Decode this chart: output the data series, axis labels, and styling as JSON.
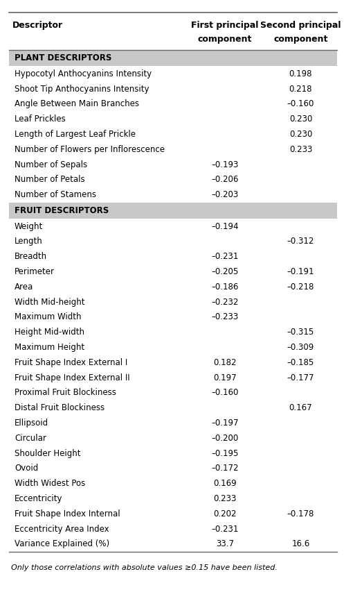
{
  "header_col0": "Descriptor",
  "header_col1_line1": "First principal",
  "header_col1_line2": "component",
  "header_col2_line1": "Second principal",
  "header_col2_line2": "component",
  "section1_label": "PLANT DESCRIPTORS",
  "rows": [
    {
      "label": "Hypocotyl Anthocyanins Intensity",
      "pc1": "",
      "pc2": "0.198",
      "section": false
    },
    {
      "label": "Shoot Tip Anthocyanins Intensity",
      "pc1": "",
      "pc2": "0.218",
      "section": false
    },
    {
      "label": "Angle Between Main Branches",
      "pc1": "",
      "pc2": "–0.160",
      "section": false
    },
    {
      "label": "Leaf Prickles",
      "pc1": "",
      "pc2": "0.230",
      "section": false
    },
    {
      "label": "Length of Largest Leaf Prickle",
      "pc1": "",
      "pc2": "0.230",
      "section": false
    },
    {
      "label": "Number of Flowers per Inflorescence",
      "pc1": "",
      "pc2": "0.233",
      "section": false
    },
    {
      "label": "Number of Sepals",
      "pc1": "–0.193",
      "pc2": "",
      "section": false
    },
    {
      "label": "Number of Petals",
      "pc1": "–0.206",
      "pc2": "",
      "section": false
    },
    {
      "label": "Number of Stamens",
      "pc1": "–0.203",
      "pc2": "",
      "section": false
    },
    {
      "label": "FRUIT DESCRIPTORS",
      "pc1": "",
      "pc2": "",
      "section": true
    },
    {
      "label": "Weight",
      "pc1": "–0.194",
      "pc2": "",
      "section": false
    },
    {
      "label": "Length",
      "pc1": "",
      "pc2": "–0.312",
      "section": false
    },
    {
      "label": "Breadth",
      "pc1": "–0.231",
      "pc2": "",
      "section": false
    },
    {
      "label": "Perimeter",
      "pc1": "–0.205",
      "pc2": "–0.191",
      "section": false
    },
    {
      "label": "Area",
      "pc1": "–0.186",
      "pc2": "–0.218",
      "section": false
    },
    {
      "label": "Width Mid-height",
      "pc1": "–0.232",
      "pc2": "",
      "section": false
    },
    {
      "label": "Maximum Width",
      "pc1": "–0.233",
      "pc2": "",
      "section": false
    },
    {
      "label": "Height Mid-width",
      "pc1": "",
      "pc2": "–0.315",
      "section": false
    },
    {
      "label": "Maximum Height",
      "pc1": "",
      "pc2": "–0.309",
      "section": false
    },
    {
      "label": "Fruit Shape Index External I",
      "pc1": "0.182",
      "pc2": "–0.185",
      "section": false
    },
    {
      "label": "Fruit Shape Index External II",
      "pc1": "0.197",
      "pc2": "–0.177",
      "section": false
    },
    {
      "label": "Proximal Fruit Blockiness",
      "pc1": "–0.160",
      "pc2": "",
      "section": false
    },
    {
      "label": "Distal Fruit Blockiness",
      "pc1": "",
      "pc2": "0.167",
      "section": false
    },
    {
      "label": "Ellipsoid",
      "pc1": "–0.197",
      "pc2": "",
      "section": false
    },
    {
      "label": "Circular",
      "pc1": "–0.200",
      "pc2": "",
      "section": false
    },
    {
      "label": "Shoulder Height",
      "pc1": "–0.195",
      "pc2": "",
      "section": false
    },
    {
      "label": "Ovoid",
      "pc1": "–0.172",
      "pc2": "",
      "section": false
    },
    {
      "label": "Width Widest Pos",
      "pc1": "0.169",
      "pc2": "",
      "section": false
    },
    {
      "label": "Eccentricity",
      "pc1": "0.233",
      "pc2": "",
      "section": false
    },
    {
      "label": "Fruit Shape Index Internal",
      "pc1": "0.202",
      "pc2": "–0.178",
      "section": false
    },
    {
      "label": "Eccentricity Area Index",
      "pc1": "–0.231",
      "pc2": "",
      "section": false
    },
    {
      "label": "Variance Explained (%)",
      "pc1": "33.7",
      "pc2": "16.6",
      "section": false
    }
  ],
  "footnote": "Only those correlations with absolute values ≥0.15 have been listed.",
  "section_bg": "#c8c8c8",
  "line_color": "#666666",
  "font_size": 8.5,
  "header_font_size": 9.0,
  "figwidth": 4.97,
  "figheight": 8.63,
  "dpi": 100
}
